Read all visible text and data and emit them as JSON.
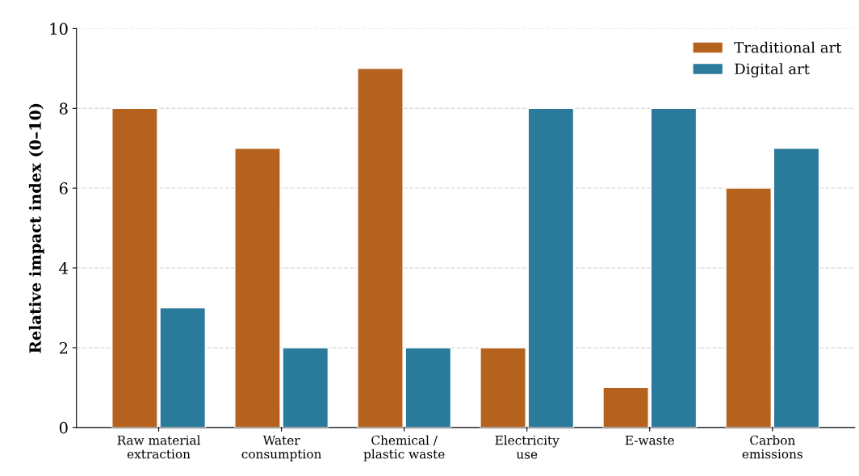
{
  "chart_data": {
    "type": "bar",
    "ylabel": "Relative impact index (0–10)",
    "categories": [
      "Raw material\nextraction",
      "Water\nconsumption",
      "Chemical /\nplastic waste",
      "Electricity\nuse",
      "E-waste",
      "Carbon\nemissions"
    ],
    "series": [
      {
        "name": "Traditional art",
        "color": "#b5621e",
        "values": [
          8,
          7,
          9,
          2,
          1,
          6
        ]
      },
      {
        "name": "Digital art",
        "color": "#2a7a9b",
        "values": [
          3,
          2,
          2,
          8,
          8,
          7
        ]
      }
    ],
    "ylim": [
      0,
      10
    ],
    "yticks": [
      0,
      2,
      4,
      6,
      8,
      10
    ],
    "grid": "y",
    "legend": "top right"
  }
}
